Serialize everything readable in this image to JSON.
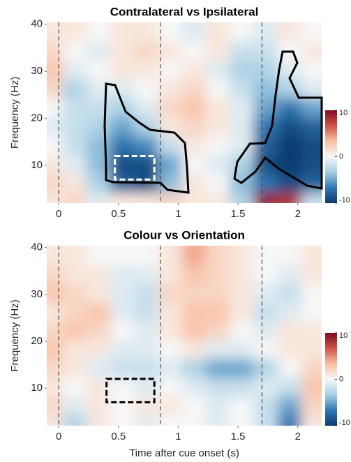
{
  "chart_data": [
    {
      "type": "heatmap",
      "title": "Contralateral vs Ipsilateral",
      "ylabel": "Frequency (Hz)",
      "x": [
        0,
        0.2,
        0.4,
        0.6,
        0.8,
        1.0,
        1.2,
        1.4,
        1.6,
        1.8,
        2.0,
        2.2
      ],
      "y": [
        4,
        8,
        12,
        16,
        20,
        24,
        28,
        32,
        36,
        40
      ],
      "z": [
        [
          1,
          2,
          -1,
          1,
          1,
          2,
          1,
          1,
          -3,
          9,
          8,
          -2
        ],
        [
          2,
          1,
          -3,
          -8,
          -9,
          -4,
          1,
          0,
          -4,
          -7,
          -9,
          -8
        ],
        [
          1,
          -1,
          -4,
          -9,
          -9,
          -5,
          0,
          -1,
          -3,
          -9,
          -10,
          -9
        ],
        [
          0,
          -2,
          -4,
          -7,
          -6,
          -2,
          1,
          0,
          -1,
          -8,
          -10,
          -9
        ],
        [
          -1,
          -2,
          -3,
          -5,
          -3,
          1,
          2,
          1,
          -1,
          -7,
          -9,
          -8
        ],
        [
          0,
          -2,
          -2,
          -3,
          -1,
          2,
          3,
          1,
          -1,
          -5,
          -7,
          -5
        ],
        [
          2,
          -3,
          -1,
          -1,
          0,
          1,
          2,
          0,
          -2,
          -4,
          -3,
          -1
        ],
        [
          3,
          -1,
          0,
          1,
          1,
          0,
          1,
          -1,
          -3,
          -3,
          -1,
          0
        ],
        [
          2,
          0,
          -1,
          1,
          2,
          1,
          0,
          1,
          -2,
          -2,
          0,
          1
        ],
        [
          1,
          1,
          0,
          1,
          1,
          0,
          -1,
          1,
          0,
          -1,
          1,
          0
        ]
      ],
      "xlim": [
        -0.1,
        2.2
      ],
      "ylim": [
        2,
        40.4
      ],
      "xticks": [
        0,
        0.5,
        1,
        1.5,
        2
      ],
      "yticks": [
        10,
        20,
        30,
        40
      ],
      "clim": [
        -10,
        10
      ],
      "cticks": [
        -10,
        0,
        10
      ],
      "vlines": [
        0,
        0.85,
        1.7
      ],
      "window": {
        "x": [
          0.47,
          0.8
        ],
        "y": [
          7,
          12
        ]
      },
      "window_color": "#ffffff",
      "colormap": [
        "#0b3a6e",
        "#2f79b5",
        "#a7cfe4",
        "#f7f7f7",
        "#f9c0a2",
        "#cf5246",
        "#7f0c22"
      ]
    },
    {
      "type": "heatmap",
      "title": "Colour vs Orientation",
      "ylabel": "Frequency (Hz)",
      "xlabel": "Time after cue onset (s)",
      "x": [
        0,
        0.2,
        0.4,
        0.6,
        0.8,
        1.0,
        1.2,
        1.4,
        1.6,
        1.8,
        2.0,
        2.2
      ],
      "y": [
        4,
        8,
        12,
        16,
        20,
        24,
        28,
        32,
        36,
        40
      ],
      "z": [
        [
          1,
          -3,
          1,
          0,
          -1,
          0,
          0,
          -1,
          0,
          -2,
          -7,
          1
        ],
        [
          2,
          -1,
          1,
          0,
          1,
          1,
          0,
          -1,
          0,
          -2,
          -5,
          2
        ],
        [
          1,
          0,
          1,
          0,
          -1,
          0,
          -1,
          -2,
          -2,
          -1,
          -2,
          3
        ],
        [
          2,
          1,
          -1,
          -2,
          -2,
          -1,
          -3,
          -5,
          -5,
          -3,
          0,
          2
        ],
        [
          3,
          1,
          1,
          -1,
          -1,
          0,
          1,
          -1,
          -1,
          0,
          1,
          1
        ],
        [
          2,
          3,
          2,
          0,
          -1,
          1,
          3,
          2,
          0,
          -1,
          1,
          1
        ],
        [
          1,
          2,
          3,
          -1,
          -2,
          1,
          3,
          3,
          1,
          -2,
          -1,
          0
        ],
        [
          3,
          2,
          1,
          -1,
          -2,
          2,
          2,
          2,
          1,
          -1,
          -2,
          0
        ],
        [
          2,
          1,
          1,
          -1,
          -1,
          1,
          3,
          2,
          1,
          0,
          -1,
          1
        ],
        [
          1,
          1,
          0,
          0,
          0,
          1,
          4,
          2,
          1,
          0,
          0,
          1
        ]
      ],
      "xlim": [
        -0.1,
        2.2
      ],
      "ylim": [
        2,
        40.4
      ],
      "xticks": [
        0,
        0.5,
        1,
        1.5,
        2
      ],
      "yticks": [
        10,
        20,
        30,
        40
      ],
      "clim": [
        -10,
        10
      ],
      "cticks": [
        -10,
        0,
        10
      ],
      "vlines": [
        0,
        0.85,
        1.7
      ],
      "window": {
        "x": [
          0.4,
          0.8
        ],
        "y": [
          7,
          12
        ]
      },
      "window_color": "#000000",
      "colormap": [
        "#0b3a6e",
        "#2f79b5",
        "#a7cfe4",
        "#f7f7f7",
        "#f9c0a2",
        "#cf5246",
        "#7f0c22"
      ]
    }
  ]
}
